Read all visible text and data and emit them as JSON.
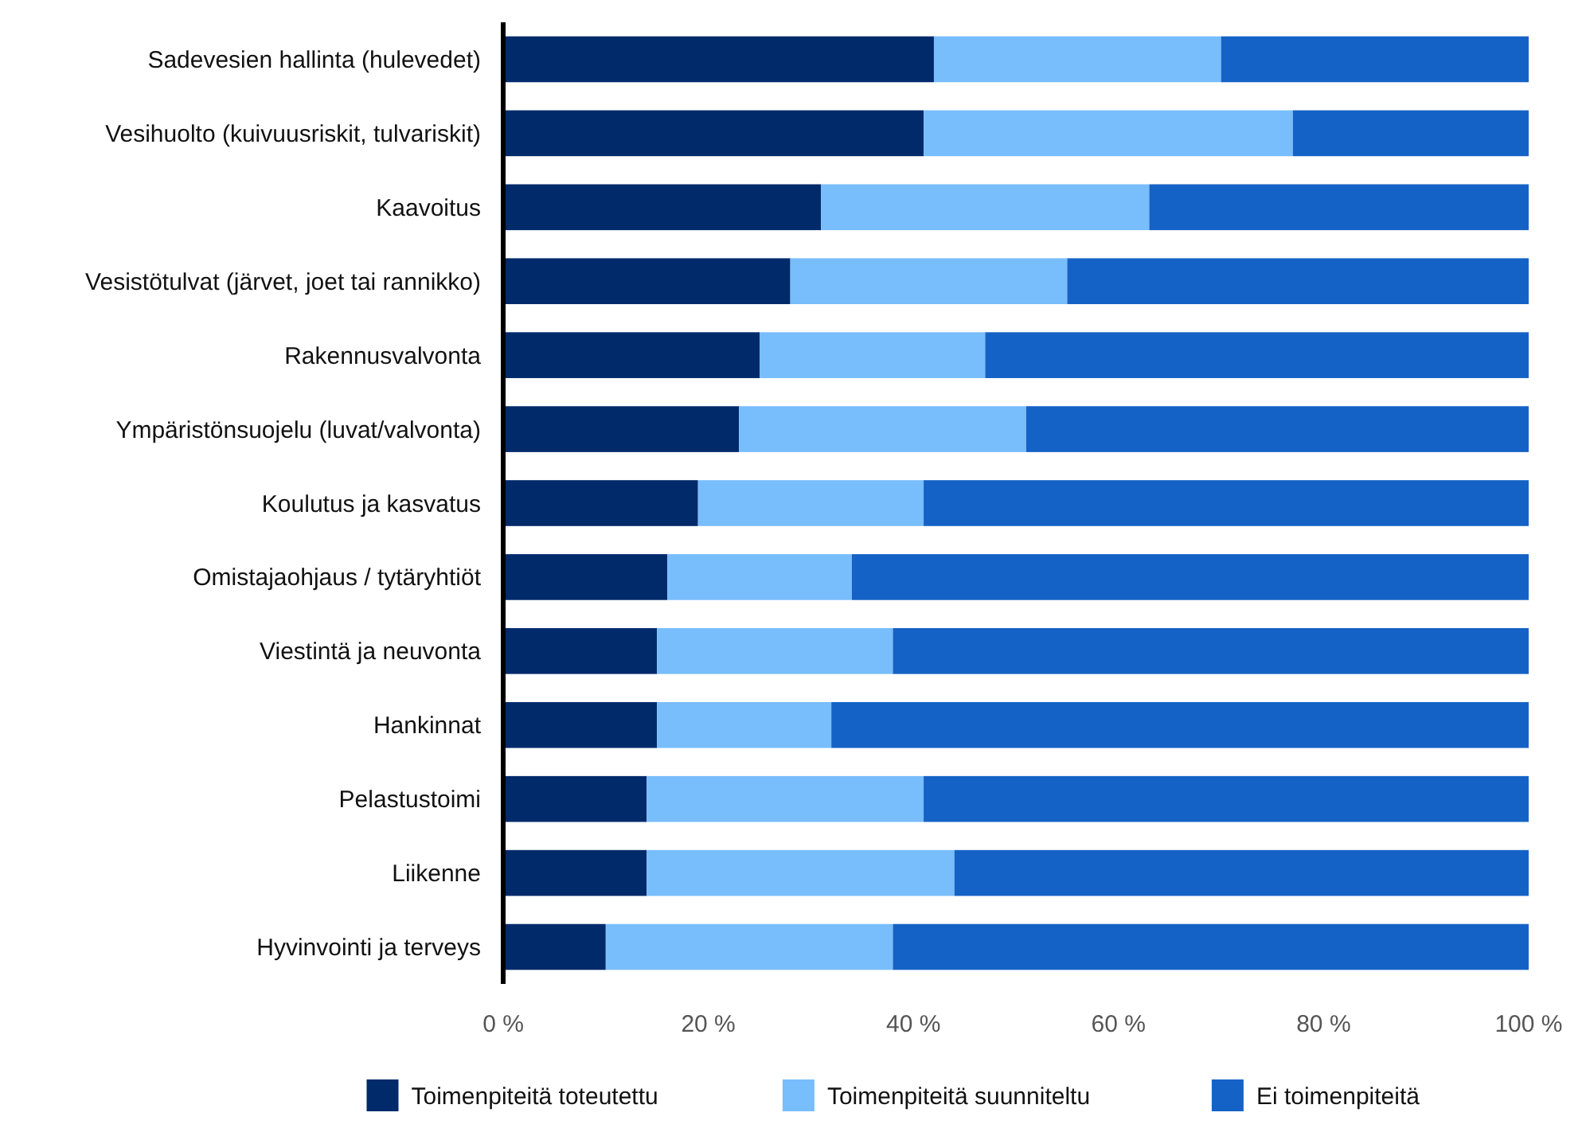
{
  "chart_data": {
    "type": "bar",
    "orientation": "horizontal",
    "stacked": true,
    "categories": [
      "Sadevesien hallinta (hulevedet)",
      "Vesihuolto (kuivuusriskit, tulvariskit)",
      "Kaavoitus",
      "Vesistötulvat (järvet, joet tai rannikko)",
      "Rakennusvalvonta",
      "Ympäristönsuojelu (luvat/valvonta)",
      "Koulutus ja kasvatus",
      "Omistajaohjaus / tytäryhtiöt",
      "Viestintä ja neuvonta",
      "Hankinnat",
      "Pelastustoimi",
      "Liikenne",
      "Hyvinvointi ja terveys"
    ],
    "series": [
      {
        "name": "Toimenpiteitä toteutettu",
        "color": "#012a6b",
        "values": [
          42,
          41,
          31,
          28,
          25,
          23,
          19,
          16,
          15,
          15,
          14,
          14,
          10
        ]
      },
      {
        "name": "Toimenpiteitä suunniteltu",
        "color": "#78bdfc",
        "values": [
          28,
          36,
          32,
          27,
          22,
          28,
          22,
          18,
          23,
          17,
          27,
          30,
          28
        ]
      },
      {
        "name": "Ei toimenpiteitä",
        "color": "#1562c6",
        "values": [
          30,
          23,
          37,
          45,
          53,
          49,
          59,
          66,
          62,
          68,
          59,
          56,
          62
        ]
      }
    ],
    "xlim": [
      0,
      100
    ],
    "xticks": [
      {
        "value": 0,
        "label": "0 %"
      },
      {
        "value": 20,
        "label": "20 %"
      },
      {
        "value": 40,
        "label": "40 %"
      },
      {
        "value": 60,
        "label": "60 %"
      },
      {
        "value": 80,
        "label": "80 %"
      },
      {
        "value": 100,
        "label": "100 %"
      }
    ],
    "grid": false,
    "legend": "bottom"
  }
}
